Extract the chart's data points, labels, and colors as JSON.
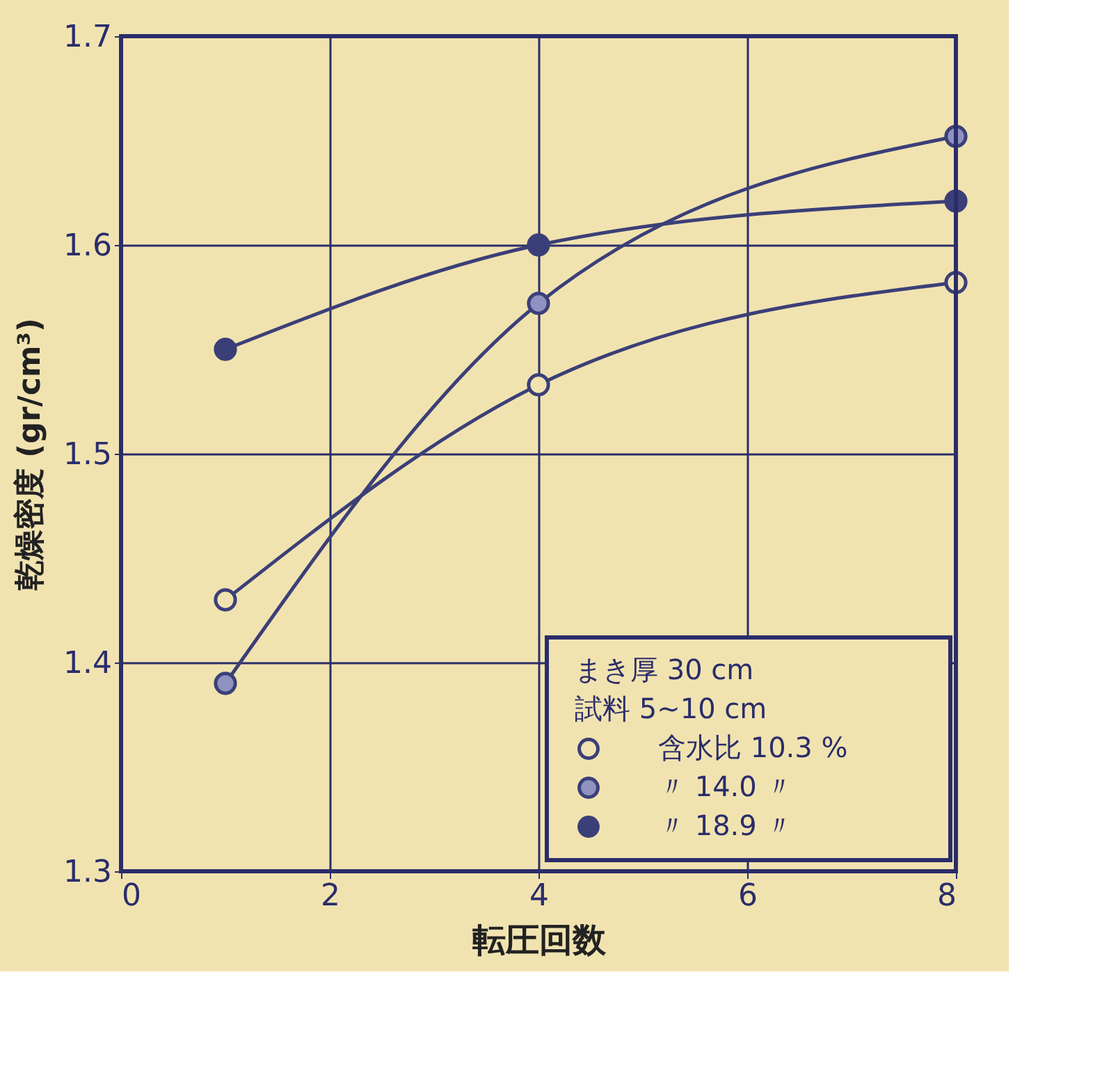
{
  "chart_data": {
    "type": "line",
    "xlabel": "転圧回数",
    "ylabel": "乾燥密度 (gr/cm³)",
    "x": [
      1,
      4,
      8
    ],
    "series": [
      {
        "name": "含水比 10.3 %",
        "color": "#3b3f78",
        "values": [
          1.43,
          1.533,
          1.582
        ]
      },
      {
        "name": "〃 14.0 〃",
        "color": "#3b3f78",
        "values": [
          1.39,
          1.572,
          1.652
        ]
      },
      {
        "name": "〃 18.9 〃",
        "color": "#3b3f78",
        "values": [
          1.55,
          1.6,
          1.621
        ]
      }
    ],
    "xlim": [
      0,
      8
    ],
    "xticks": [
      0,
      2,
      4,
      6,
      8
    ],
    "ylim": [
      1.3,
      1.7
    ],
    "yticks": [
      1.3,
      1.4,
      1.5,
      1.6,
      1.7
    ],
    "grid": true,
    "legend": "bottom right",
    "marker": "circle",
    "line_style": "solid",
    "annotations": [
      "まき厚 30 cm",
      "試料 5~10 cm"
    ]
  }
}
